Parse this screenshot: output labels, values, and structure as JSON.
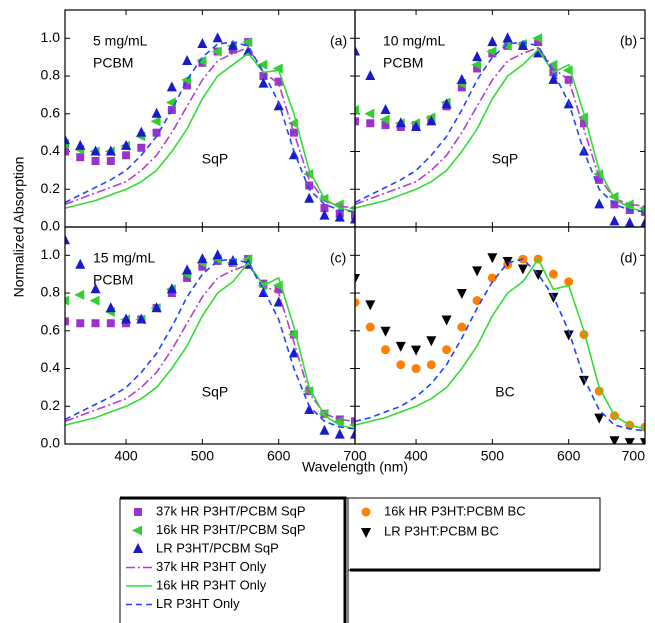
{
  "figure": {
    "xlabel": "Wavelength (nm)",
    "ylabel": "Normalized Absorption"
  },
  "chart_data": [
    {
      "type": "line",
      "panel_label": "(a)",
      "concentration": [
        "5 mg/mL",
        "PCBM"
      ],
      "method": "SqP",
      "xlim": [
        320,
        700
      ],
      "ylim": [
        0,
        1.15
      ],
      "xticks": [
        400,
        500,
        600,
        700
      ],
      "yticks": [
        {
          "value": 0,
          "label": "0.0"
        },
        {
          "value": 0.2,
          "label": "0.2"
        },
        {
          "value": 0.4,
          "label": "0.4"
        },
        {
          "value": 0.6,
          "label": "0.6"
        },
        {
          "value": 0.8,
          "label": "0.8"
        },
        {
          "value": 1,
          "label": "1.0"
        }
      ],
      "xtick_labels": false,
      "ytick_labels": true,
      "x": [
        320,
        340,
        360,
        380,
        400,
        420,
        440,
        460,
        480,
        500,
        520,
        540,
        560,
        580,
        600,
        620,
        640,
        660,
        680,
        700
      ],
      "series": [
        {
          "name": "37k HR P3HT/PCBM SqP",
          "color": "#9933cc",
          "marker": "square",
          "values": [
            0.4,
            0.37,
            0.35,
            0.35,
            0.38,
            0.42,
            0.5,
            0.62,
            0.75,
            0.87,
            0.93,
            0.94,
            0.98,
            0.8,
            0.77,
            0.5,
            0.22,
            0.1,
            0.07,
            0.06
          ]
        },
        {
          "name": "16k HR P3HT/PCBM SqP",
          "color": "#33cc33",
          "marker": "triangle-left",
          "values": [
            0.44,
            0.41,
            0.4,
            0.4,
            0.43,
            0.48,
            0.56,
            0.66,
            0.78,
            0.88,
            0.93,
            0.96,
            0.98,
            0.86,
            0.84,
            0.55,
            0.28,
            0.15,
            0.12,
            0.1
          ]
        },
        {
          "name": "LR P3HT/PCBM SqP",
          "color": "#1a1acc",
          "marker": "triangle-up",
          "values": [
            0.46,
            0.43,
            0.4,
            0.4,
            0.43,
            0.5,
            0.6,
            0.74,
            0.88,
            0.97,
            1.0,
            0.96,
            0.93,
            0.76,
            0.64,
            0.38,
            0.15,
            0.06,
            0.05,
            0.04
          ]
        },
        {
          "name": "37k HR P3HT Only",
          "color": "#b040d0",
          "line": "dashdot",
          "values": [
            0.12,
            0.15,
            0.18,
            0.21,
            0.24,
            0.3,
            0.38,
            0.5,
            0.64,
            0.78,
            0.88,
            0.92,
            0.95,
            0.82,
            0.76,
            0.5,
            0.25,
            0.14,
            0.11,
            0.1
          ]
        },
        {
          "name": "16k HR P3HT Only",
          "color": "#33dd33",
          "line": "solid",
          "values": [
            0.1,
            0.12,
            0.14,
            0.17,
            0.2,
            0.24,
            0.3,
            0.4,
            0.52,
            0.68,
            0.8,
            0.86,
            0.92,
            0.82,
            0.83,
            0.6,
            0.3,
            0.15,
            0.1,
            0.08
          ]
        },
        {
          "name": "LR P3HT Only",
          "color": "#2244ff",
          "line": "dashed",
          "values": [
            0.13,
            0.17,
            0.21,
            0.25,
            0.3,
            0.38,
            0.48,
            0.62,
            0.78,
            0.9,
            0.97,
            0.98,
            0.96,
            0.82,
            0.66,
            0.4,
            0.2,
            0.12,
            0.09,
            0.08
          ]
        }
      ]
    },
    {
      "type": "line",
      "panel_label": "(b)",
      "concentration": [
        "10 mg/mL",
        "PCBM"
      ],
      "method": "SqP",
      "xlim": [
        320,
        700
      ],
      "ylim": [
        0,
        1.15
      ],
      "xticks": [
        400,
        500,
        600,
        700
      ],
      "yticks": [
        0,
        0.2,
        0.4,
        0.6,
        0.8,
        1
      ],
      "xtick_labels": false,
      "ytick_labels": false,
      "x": [
        320,
        340,
        360,
        380,
        400,
        420,
        440,
        460,
        480,
        500,
        520,
        540,
        560,
        580,
        600,
        620,
        640,
        660,
        680,
        700
      ],
      "series": [
        {
          "color": "#9933cc",
          "marker": "square",
          "values": [
            0.56,
            0.55,
            0.54,
            0.53,
            0.54,
            0.57,
            0.64,
            0.74,
            0.84,
            0.92,
            0.96,
            0.96,
            0.98,
            0.82,
            0.78,
            0.55,
            0.25,
            0.12,
            0.09,
            0.08
          ]
        },
        {
          "color": "#33cc33",
          "marker": "triangle-left",
          "values": [
            0.62,
            0.6,
            0.57,
            0.55,
            0.55,
            0.58,
            0.66,
            0.76,
            0.86,
            0.93,
            0.96,
            0.97,
            1.0,
            0.86,
            0.83,
            0.58,
            0.28,
            0.16,
            0.12,
            0.1
          ]
        },
        {
          "color": "#1a1acc",
          "marker": "triangle-up",
          "values": [
            0.93,
            0.8,
            0.62,
            0.55,
            0.53,
            0.56,
            0.65,
            0.78,
            0.9,
            0.98,
            1.0,
            0.96,
            0.92,
            0.78,
            0.65,
            0.4,
            0.12,
            0.03,
            0.02,
            0.02
          ]
        },
        {
          "color": "#b040d0",
          "line": "dashdot",
          "values": [
            0.12,
            0.15,
            0.18,
            0.21,
            0.24,
            0.3,
            0.38,
            0.5,
            0.64,
            0.78,
            0.88,
            0.92,
            0.95,
            0.84,
            0.78,
            0.52,
            0.26,
            0.15,
            0.12,
            0.11
          ]
        },
        {
          "color": "#33dd33",
          "line": "solid",
          "values": [
            0.1,
            0.12,
            0.14,
            0.17,
            0.2,
            0.24,
            0.3,
            0.4,
            0.52,
            0.68,
            0.8,
            0.86,
            0.94,
            0.82,
            0.86,
            0.6,
            0.3,
            0.15,
            0.1,
            0.08
          ]
        },
        {
          "color": "#2244ff",
          "line": "dashed",
          "values": [
            0.13,
            0.17,
            0.21,
            0.25,
            0.3,
            0.38,
            0.48,
            0.62,
            0.78,
            0.9,
            0.97,
            0.98,
            0.96,
            0.82,
            0.66,
            0.4,
            0.2,
            0.12,
            0.09,
            0.08
          ]
        }
      ]
    },
    {
      "type": "line",
      "panel_label": "(c)",
      "concentration": [
        "15 mg/mL",
        "PCBM"
      ],
      "method": "SqP",
      "xlim": [
        320,
        700
      ],
      "ylim": [
        0,
        1.15
      ],
      "xticks": [
        400,
        500,
        600,
        700
      ],
      "yticks": [
        {
          "value": 0,
          "label": "0.0"
        },
        {
          "value": 0.2,
          "label": "0.2"
        },
        {
          "value": 0.4,
          "label": "0.4"
        },
        {
          "value": 0.6,
          "label": "0.6"
        },
        {
          "value": 0.8,
          "label": "0.8"
        },
        {
          "value": 1,
          "label": "1.0"
        }
      ],
      "xtick_labels": true,
      "ytick_labels": true,
      "x": [
        320,
        340,
        360,
        380,
        400,
        420,
        440,
        460,
        480,
        500,
        520,
        540,
        560,
        580,
        600,
        620,
        640,
        660,
        680,
        700
      ],
      "series": [
        {
          "color": "#9933cc",
          "marker": "square",
          "values": [
            0.65,
            0.64,
            0.64,
            0.64,
            0.64,
            0.66,
            0.72,
            0.8,
            0.88,
            0.94,
            0.97,
            0.96,
            0.98,
            0.85,
            0.82,
            0.58,
            0.28,
            0.16,
            0.13,
            0.12
          ]
        },
        {
          "color": "#33cc33",
          "marker": "triangle-left",
          "values": [
            0.76,
            0.79,
            0.76,
            0.7,
            0.66,
            0.66,
            0.72,
            0.82,
            0.9,
            0.96,
            0.98,
            0.96,
            0.98,
            0.84,
            0.84,
            0.58,
            0.28,
            0.16,
            0.12,
            0.1
          ]
        },
        {
          "color": "#1a1acc",
          "marker": "triangle-up",
          "values": [
            1.08,
            0.95,
            0.82,
            0.72,
            0.66,
            0.66,
            0.72,
            0.82,
            0.92,
            0.98,
            1.0,
            0.97,
            0.95,
            0.8,
            0.75,
            0.48,
            0.18,
            0.07,
            0.05,
            0.05
          ]
        },
        {
          "color": "#b040d0",
          "line": "dashdot",
          "values": [
            0.12,
            0.15,
            0.18,
            0.21,
            0.24,
            0.3,
            0.38,
            0.5,
            0.64,
            0.78,
            0.88,
            0.92,
            0.95,
            0.84,
            0.8,
            0.54,
            0.27,
            0.16,
            0.13,
            0.12
          ]
        },
        {
          "color": "#33dd33",
          "line": "solid",
          "values": [
            0.1,
            0.12,
            0.14,
            0.17,
            0.2,
            0.24,
            0.3,
            0.4,
            0.52,
            0.68,
            0.8,
            0.86,
            0.96,
            0.84,
            0.88,
            0.62,
            0.3,
            0.15,
            0.1,
            0.08
          ]
        },
        {
          "color": "#2244ff",
          "line": "dashed",
          "values": [
            0.13,
            0.17,
            0.21,
            0.25,
            0.3,
            0.38,
            0.48,
            0.62,
            0.78,
            0.9,
            0.97,
            0.98,
            0.96,
            0.82,
            0.66,
            0.4,
            0.2,
            0.12,
            0.09,
            0.08
          ]
        }
      ]
    },
    {
      "type": "line",
      "panel_label": "(d)",
      "method": "BC",
      "xlim": [
        320,
        700
      ],
      "ylim": [
        0,
        1.15
      ],
      "xticks": [
        400,
        500,
        600,
        700
      ],
      "yticks": [
        0,
        0.2,
        0.4,
        0.6,
        0.8,
        1
      ],
      "xtick_labels": true,
      "ytick_labels": false,
      "x": [
        320,
        340,
        360,
        380,
        400,
        420,
        440,
        460,
        480,
        500,
        520,
        540,
        560,
        580,
        600,
        620,
        640,
        660,
        680,
        700
      ],
      "series": [
        {
          "name": "16k HR P3HT:PCBM BC",
          "color": "#ff8000",
          "marker": "circle",
          "values": [
            0.75,
            0.62,
            0.5,
            0.42,
            0.4,
            0.42,
            0.5,
            0.62,
            0.76,
            0.88,
            0.95,
            0.98,
            0.98,
            0.9,
            0.86,
            0.58,
            0.28,
            0.15,
            0.1,
            0.09
          ]
        },
        {
          "name": "LR P3HT:PCBM BC",
          "color": "#000000",
          "marker": "triangle-down",
          "values": [
            0.88,
            0.74,
            0.6,
            0.52,
            0.5,
            0.55,
            0.66,
            0.8,
            0.92,
            0.99,
            0.97,
            0.93,
            0.9,
            0.78,
            0.58,
            0.34,
            0.14,
            0.02,
            0.01,
            0.01
          ]
        },
        {
          "color": "#33dd33",
          "line": "solid",
          "values": [
            0.1,
            0.12,
            0.14,
            0.17,
            0.2,
            0.24,
            0.3,
            0.4,
            0.52,
            0.68,
            0.8,
            0.86,
            0.98,
            0.82,
            0.84,
            0.6,
            0.3,
            0.15,
            0.1,
            0.08
          ]
        },
        {
          "color": "#2244ff",
          "line": "dashed",
          "values": [
            0.12,
            0.14,
            0.17,
            0.2,
            0.25,
            0.32,
            0.42,
            0.56,
            0.72,
            0.86,
            0.96,
            0.98,
            0.9,
            0.78,
            0.6,
            0.35,
            0.18,
            0.1,
            0.08,
            0.07
          ]
        }
      ]
    }
  ]
}
